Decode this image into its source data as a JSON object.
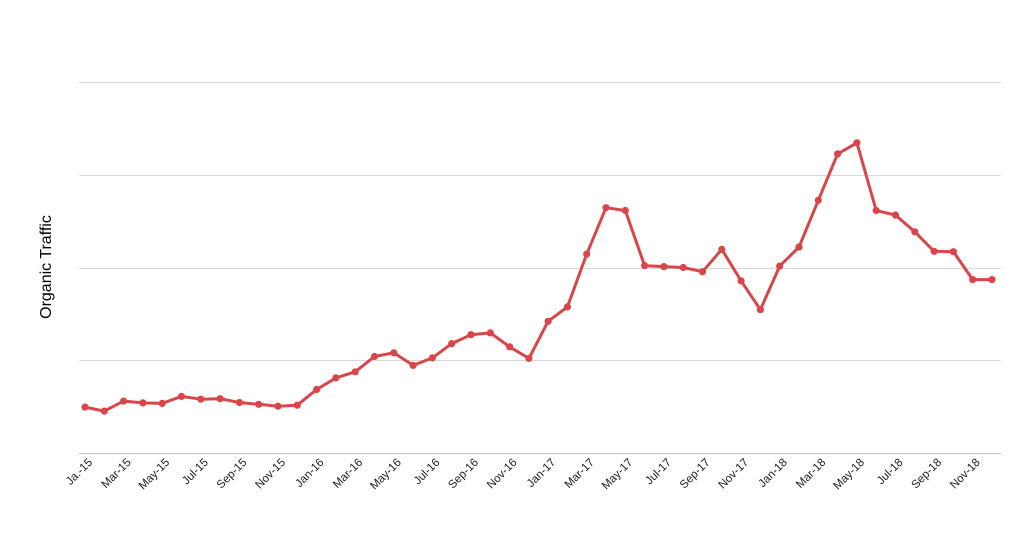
{
  "chart_data": {
    "type": "line",
    "title": "",
    "xlabel": "",
    "ylabel": "Organic Traffic",
    "y_tick_labels_shown": false,
    "ylim": [
      0,
      400
    ],
    "grid": true,
    "colors": {
      "line": "#d9464a",
      "grid": "#d9d9d9"
    },
    "x": [
      "Jan-15",
      "Feb-15",
      "Mar-15",
      "Apr-15",
      "May-15",
      "Jun-15",
      "Jul-15",
      "Aug-15",
      "Sep-15",
      "Oct-15",
      "Nov-15",
      "Dec-15",
      "Jan-16",
      "Feb-16",
      "Mar-16",
      "Apr-16",
      "May-16",
      "Jun-16",
      "Jul-16",
      "Aug-16",
      "Sep-16",
      "Oct-16",
      "Nov-16",
      "Dec-16",
      "Jan-17",
      "Feb-17",
      "Mar-17",
      "Apr-17",
      "May-17",
      "Jun-17",
      "Jul-17",
      "Aug-17",
      "Sep-17",
      "Oct-17",
      "Nov-17",
      "Dec-17",
      "Jan-18",
      "Feb-18",
      "Mar-18",
      "Apr-18",
      "May-18",
      "Jun-18",
      "Jul-18",
      "Aug-18",
      "Sep-18",
      "Oct-18",
      "Nov-18",
      "Dec-18"
    ],
    "x_tick_labels": [
      "Ja.-15",
      "Mar-15",
      "May-15",
      "Jul-15",
      "Sep-15",
      "Nov-15",
      "Jan-16",
      "Mar-16",
      "May-16",
      "Jul-16",
      "Sep-16",
      "Nov-16",
      "Jan-17",
      "Mar-17",
      "May-17",
      "Jul-17",
      "Sep-17",
      "Nov-17",
      "Jan-18",
      "Mar-18",
      "May-18",
      "Jul-18",
      "Sep-18",
      "Nov-18"
    ],
    "series": [
      {
        "name": "",
        "values": [
          49.5,
          45.2,
          56.0,
          54.0,
          53.5,
          61.0,
          58.0,
          58.5,
          54.5,
          52.5,
          50.5,
          51.5,
          68.5,
          81.0,
          87.5,
          104.0,
          108.0,
          94.5,
          102.5,
          118.0,
          127.5,
          129.5,
          114.5,
          102.0,
          142.0,
          157.5,
          214.5,
          264.5,
          261.5,
          202.0,
          201.0,
          200.0,
          195.5,
          219.5,
          185.5,
          154.5,
          201.5,
          222.0,
          272.5,
          322.5,
          334.5,
          261.5,
          256.5,
          238.5,
          217.5,
          217.0,
          187.0,
          187.0
        ]
      }
    ]
  }
}
